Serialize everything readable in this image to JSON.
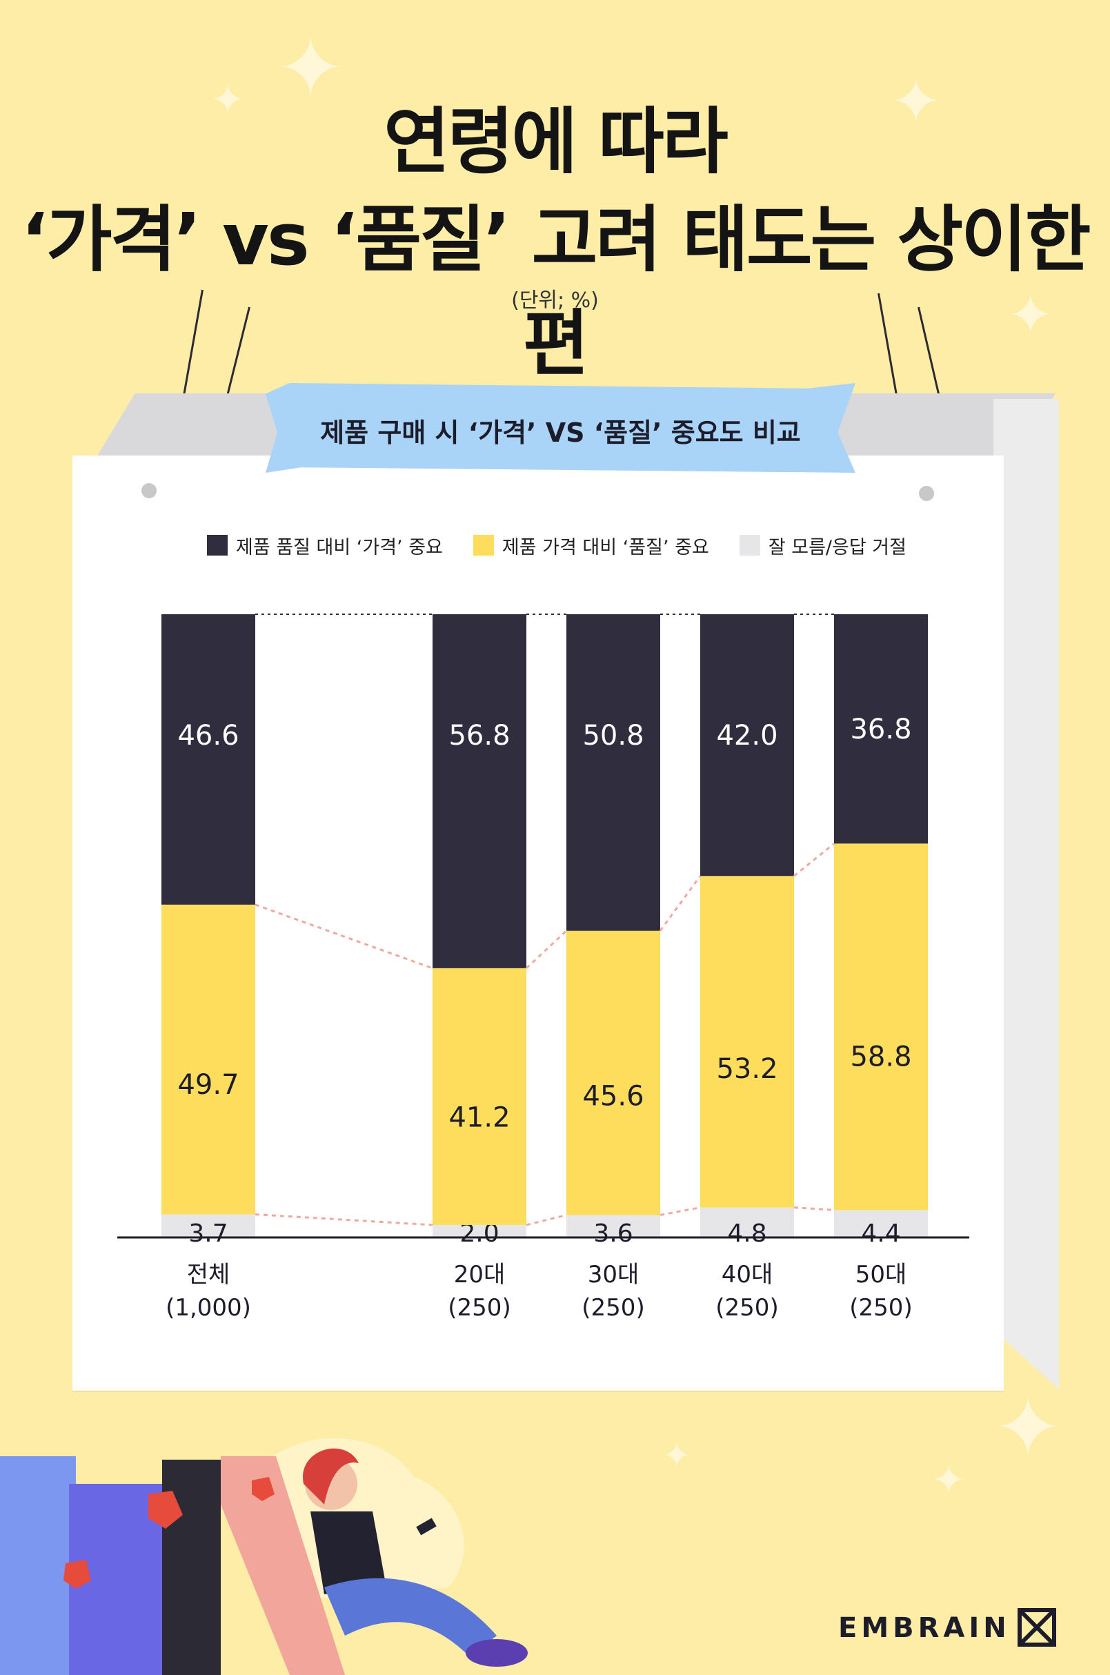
{
  "header": {
    "title_line1": "연령에 따라",
    "title_line2": "‘가격’ vs ‘품질’ 고려 태도는 상이한 편",
    "unit": "(단위; %)"
  },
  "ribbon_label": "제품 구매 시 ‘가격’ VS ‘품질’ 중요도 비교",
  "brand": "EMBRAIN",
  "colors": {
    "price": "#302d3f",
    "quality": "#fedd5c",
    "dont_know": "#e6e6e8",
    "background": "#fdeda6",
    "connector": "#f0a9a0"
  },
  "chart_data": {
    "type": "bar",
    "stacked": true,
    "normalized": "100%",
    "legend_position": "top",
    "categories": [
      "전체",
      "20대",
      "30대",
      "40대",
      "50대"
    ],
    "category_sublabels": [
      "(1,000)",
      "(250)",
      "(250)",
      "(250)",
      "(250)"
    ],
    "series": [
      {
        "name": "잘 모름/응답 거절",
        "values": [
          3.7,
          2.0,
          3.6,
          4.8,
          4.4
        ]
      },
      {
        "name": "제품 가격 대비 ‘품질’ 중요",
        "values": [
          49.7,
          41.2,
          45.6,
          53.2,
          58.8
        ]
      },
      {
        "name": "제품 품질 대비 ‘가격’ 중요",
        "values": [
          46.6,
          56.8,
          50.8,
          42.0,
          36.8
        ]
      }
    ],
    "value_labels": [
      [
        "3.7",
        "2.0",
        "3.6",
        "4.8",
        "4.4"
      ],
      [
        "49.7",
        "41.2",
        "45.6",
        "53.2",
        "58.8"
      ],
      [
        "46.6",
        "56.8",
        "50.8",
        "42.0",
        "36.8"
      ]
    ]
  }
}
